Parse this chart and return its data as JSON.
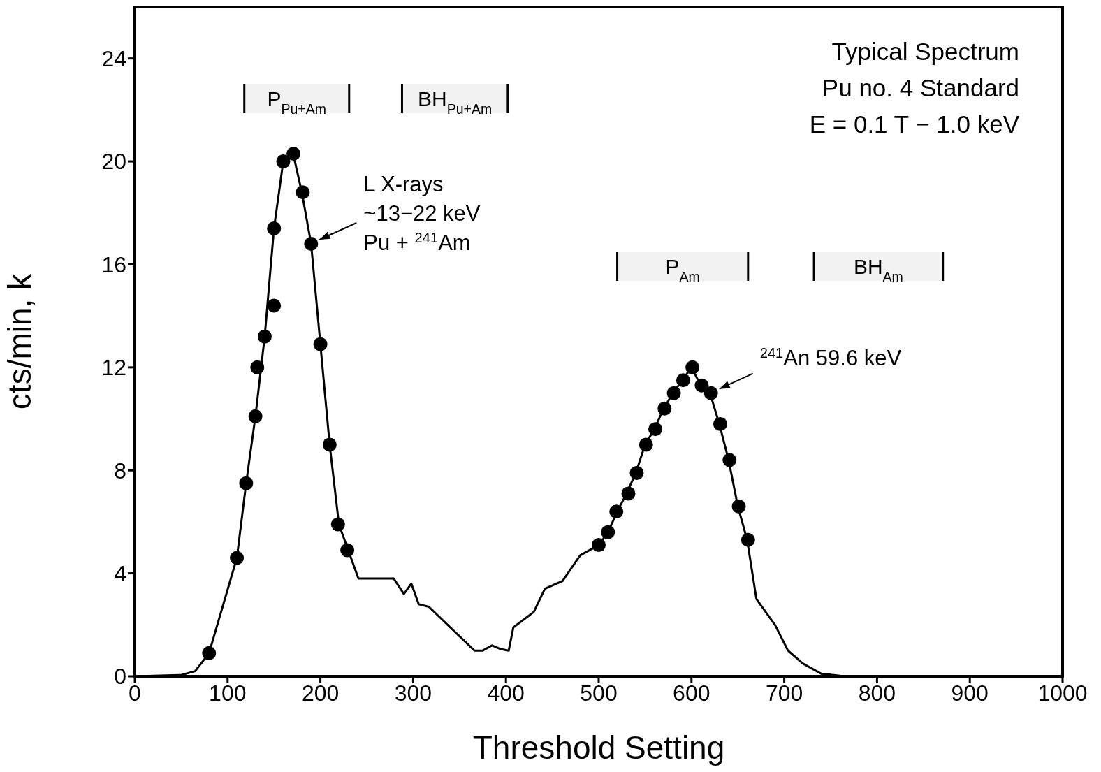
{
  "chart_data": {
    "type": "line",
    "xlabel": "Threshold Setting",
    "ylabel": "cts/min, k",
    "xlim": [
      0,
      1000
    ],
    "xticks": [
      0,
      100,
      200,
      300,
      400,
      500,
      600,
      700,
      800,
      900,
      1000
    ],
    "ylim": [
      0,
      26
    ],
    "yticks": [
      0,
      4,
      8,
      12,
      16,
      20,
      24
    ],
    "grid": false,
    "series": [
      {
        "color": "#000000",
        "line_style": "solid",
        "marker": "none",
        "x": [
          0,
          50,
          65,
          80,
          110,
          120,
          130,
          140,
          150,
          160,
          170,
          180,
          190,
          200,
          210,
          220,
          230,
          241,
          260,
          279,
          290,
          298,
          306,
          317,
          340,
          366,
          375,
          385,
          395,
          403,
          408,
          430,
          442,
          461,
          480,
          500,
          510,
          520,
          530,
          540,
          550,
          560,
          570,
          580,
          590,
          600,
          610,
          620,
          630,
          640,
          650,
          660,
          670,
          690,
          704,
          720,
          740,
          760,
          1000
        ],
        "values": [
          0,
          0.05,
          0.2,
          0.9,
          4.6,
          7.5,
          10.1,
          13.2,
          17.4,
          20.0,
          20.4,
          18.8,
          16.8,
          12.9,
          9.0,
          5.9,
          4.9,
          3.8,
          3.8,
          3.8,
          3.2,
          3.6,
          2.8,
          2.7,
          1.9,
          1.0,
          1.0,
          1.2,
          1.05,
          1.0,
          1.9,
          2.5,
          3.4,
          3.7,
          4.7,
          5.1,
          5.6,
          6.4,
          7.1,
          7.9,
          9.0,
          9.6,
          10.4,
          11.0,
          11.5,
          12.0,
          11.3,
          11.0,
          9.8,
          8.4,
          6.6,
          5.3,
          3.0,
          2.0,
          1.0,
          0.5,
          0.1,
          0.02,
          0
        ]
      },
      {
        "type": "scatter",
        "color": "#000000",
        "marker": "circle",
        "x": [
          80,
          110,
          120,
          130,
          132,
          140,
          150,
          150,
          160,
          171,
          181,
          190,
          200,
          210,
          219,
          229,
          500,
          510,
          519,
          532,
          541,
          551,
          561,
          571,
          581,
          591,
          601,
          611,
          621,
          631,
          641,
          651,
          661
        ],
        "values": [
          0.9,
          4.6,
          7.5,
          10.1,
          12.0,
          13.2,
          14.4,
          17.4,
          20.0,
          20.3,
          18.8,
          16.8,
          12.9,
          9.0,
          5.9,
          4.9,
          5.1,
          5.6,
          6.4,
          7.1,
          7.9,
          9.0,
          9.6,
          10.4,
          11.0,
          11.5,
          12.0,
          11.3,
          11.0,
          9.8,
          8.4,
          6.6,
          5.3
        ]
      }
    ],
    "bands": [
      {
        "axis": "x",
        "from": 118,
        "to": 231,
        "label": "P$_{Pu+Am}$"
      },
      {
        "axis": "x",
        "from": 288,
        "to": 402,
        "label": "BH$_{Pu+Am}$"
      },
      {
        "axis": "x",
        "from": 520,
        "to": 661,
        "label": "P$_{Am}$"
      },
      {
        "axis": "x",
        "from": 732,
        "to": 871,
        "label": "BH$_{Am}$"
      }
    ],
    "annotations": [
      "Typical Spectrum",
      "Pu no. 4 Standard",
      "E = 0.1 T − 1.0 keV",
      {
        "text": "L X-rays\n~13−22 keV\nPu + $^{241}$Am",
        "x": 190,
        "y": 16.8
      },
      {
        "text": "$^{241}$An 59.6 keV",
        "x": 621,
        "y": 11.0
      }
    ]
  }
}
